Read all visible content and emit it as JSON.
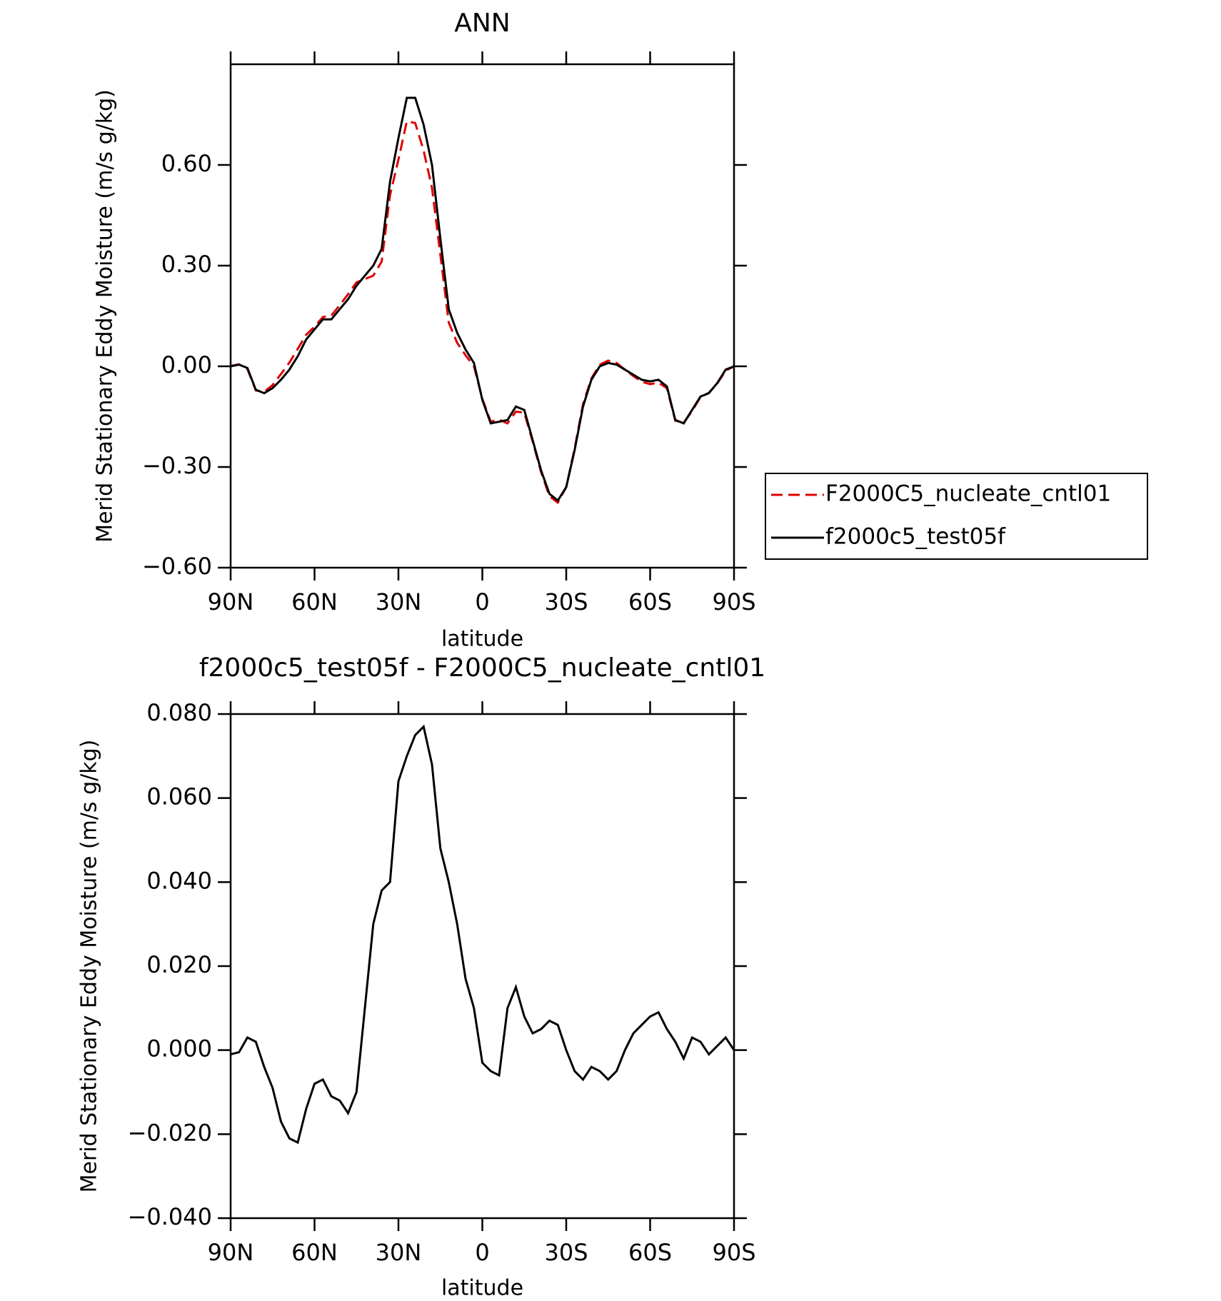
{
  "chart_data": [
    {
      "type": "line",
      "title": "ANN",
      "xlabel": "latitude",
      "ylabel": "Merid Stationary Eddy Moisture (m/s g/kg)",
      "x": [
        90,
        87,
        84,
        81,
        78,
        75,
        72,
        69,
        66,
        63,
        60,
        57,
        54,
        51,
        48,
        45,
        42,
        39,
        36,
        33,
        30,
        27,
        24,
        21,
        18,
        15,
        12,
        9,
        6,
        3,
        0,
        -3,
        -6,
        -9,
        -12,
        -15,
        -18,
        -21,
        -24,
        -27,
        -30,
        -33,
        -36,
        -39,
        -42,
        -45,
        -48,
        -51,
        -54,
        -57,
        -60,
        -63,
        -66,
        -69,
        -72,
        -75,
        -78,
        -81,
        -84,
        -87,
        -90
      ],
      "series": [
        {
          "name": "F2000C5_nucleate_cntl01",
          "color": "#e00000",
          "dash": true,
          "values": [
            0.001,
            0.006,
            -0.008,
            -0.072,
            -0.076,
            -0.056,
            -0.023,
            0.011,
            0.052,
            0.094,
            0.118,
            0.147,
            0.151,
            0.182,
            0.215,
            0.25,
            0.26,
            0.27,
            0.312,
            0.51,
            0.616,
            0.73,
            0.725,
            0.643,
            0.532,
            0.332,
            0.13,
            0.07,
            0.033,
            0.0,
            -0.097,
            -0.165,
            -0.159,
            -0.17,
            -0.135,
            -0.138,
            -0.224,
            -0.315,
            -0.387,
            -0.406,
            -0.36,
            -0.245,
            -0.113,
            -0.036,
            0.005,
            0.017,
            0.01,
            -0.01,
            -0.029,
            -0.046,
            -0.053,
            -0.049,
            -0.065,
            -0.162,
            -0.168,
            -0.133,
            -0.092,
            -0.079,
            -0.051,
            -0.013,
            0.0
          ]
        },
        {
          "name": "f2000c5_test05f",
          "color": "#000000",
          "dash": false,
          "values": [
            0.0,
            0.005,
            -0.005,
            -0.07,
            -0.08,
            -0.065,
            -0.04,
            -0.01,
            0.03,
            0.08,
            0.11,
            0.14,
            0.14,
            0.17,
            0.2,
            0.24,
            0.27,
            0.3,
            0.35,
            0.55,
            0.68,
            0.8,
            0.8,
            0.72,
            0.6,
            0.38,
            0.17,
            0.1,
            0.05,
            0.01,
            -0.1,
            -0.17,
            -0.165,
            -0.16,
            -0.12,
            -0.13,
            -0.22,
            -0.31,
            -0.38,
            -0.4,
            -0.36,
            -0.25,
            -0.12,
            -0.04,
            0.0,
            0.01,
            0.005,
            -0.01,
            -0.025,
            -0.04,
            -0.045,
            -0.04,
            -0.06,
            -0.16,
            -0.17,
            -0.13,
            -0.09,
            -0.08,
            -0.05,
            -0.01,
            0.0
          ]
        }
      ],
      "xlim": [
        90,
        -90
      ],
      "xticks": [
        {
          "value": 90,
          "label": "90N"
        },
        {
          "value": 60,
          "label": "60N"
        },
        {
          "value": 30,
          "label": "30N"
        },
        0,
        {
          "value": -30,
          "label": "30S"
        },
        {
          "value": -60,
          "label": "60S"
        },
        {
          "value": -90,
          "label": "90S"
        }
      ],
      "ylim": [
        -0.6,
        0.9
      ],
      "yticks": [
        {
          "value": -0.6,
          "label": "−0.60"
        },
        {
          "value": -0.3,
          "label": "−0.30"
        },
        {
          "value": 0,
          "label": "0.00"
        },
        {
          "value": 0.3,
          "label": "0.30"
        },
        {
          "value": 0.6,
          "label": "0.60"
        }
      ],
      "legend": "right"
    },
    {
      "type": "line",
      "title": "f2000c5_test05f - F2000C5_nucleate_cntl01",
      "xlabel": "latitude",
      "ylabel": "Merid Stationary Eddy Moisture (m/s g/kg)",
      "x": [
        90,
        87,
        84,
        81,
        78,
        75,
        72,
        69,
        66,
        63,
        60,
        57,
        54,
        51,
        48,
        45,
        42,
        39,
        36,
        33,
        30,
        27,
        24,
        21,
        18,
        15,
        12,
        9,
        6,
        3,
        0,
        -3,
        -6,
        -9,
        -12,
        -15,
        -18,
        -21,
        -24,
        -27,
        -30,
        -33,
        -36,
        -39,
        -42,
        -45,
        -48,
        -51,
        -54,
        -57,
        -60,
        -63,
        -66,
        -69,
        -72,
        -75,
        -78,
        -81,
        -84,
        -87,
        -90
      ],
      "series": [
        {
          "color": "#000000",
          "dash": false,
          "values": [
            -0.001,
            -0.0005,
            0.003,
            0.002,
            -0.004,
            -0.009,
            -0.017,
            -0.021,
            -0.022,
            -0.014,
            -0.008,
            -0.007,
            -0.011,
            -0.012,
            -0.015,
            -0.01,
            0.01,
            0.03,
            0.038,
            0.04,
            0.064,
            0.07,
            0.075,
            0.077,
            0.068,
            0.048,
            0.04,
            0.03,
            0.017,
            0.01,
            -0.003,
            -0.005,
            -0.006,
            0.01,
            0.015,
            0.008,
            0.004,
            0.005,
            0.007,
            0.006,
            0.0,
            -0.005,
            -0.007,
            -0.004,
            -0.005,
            -0.007,
            -0.005,
            0.0,
            0.004,
            0.006,
            0.008,
            0.009,
            0.005,
            0.002,
            -0.002,
            0.003,
            0.002,
            -0.001,
            0.001,
            0.003,
            0.0
          ]
        }
      ],
      "xlim": [
        90,
        -90
      ],
      "xticks": [
        {
          "value": 90,
          "label": "90N"
        },
        {
          "value": 60,
          "label": "60N"
        },
        {
          "value": 30,
          "label": "30N"
        },
        0,
        {
          "value": -30,
          "label": "30S"
        },
        {
          "value": -60,
          "label": "60S"
        },
        {
          "value": -90,
          "label": "90S"
        }
      ],
      "ylim": [
        -0.04,
        0.08
      ],
      "yticks": [
        {
          "value": -0.04,
          "label": "−0.040"
        },
        {
          "value": -0.02,
          "label": "−0.020"
        },
        {
          "value": 0,
          "label": "0.000"
        },
        {
          "value": 0.02,
          "label": "0.020"
        },
        {
          "value": 0.04,
          "label": "0.040"
        },
        {
          "value": 0.06,
          "label": "0.060"
        },
        {
          "value": 0.08,
          "label": "0.080"
        }
      ]
    }
  ]
}
